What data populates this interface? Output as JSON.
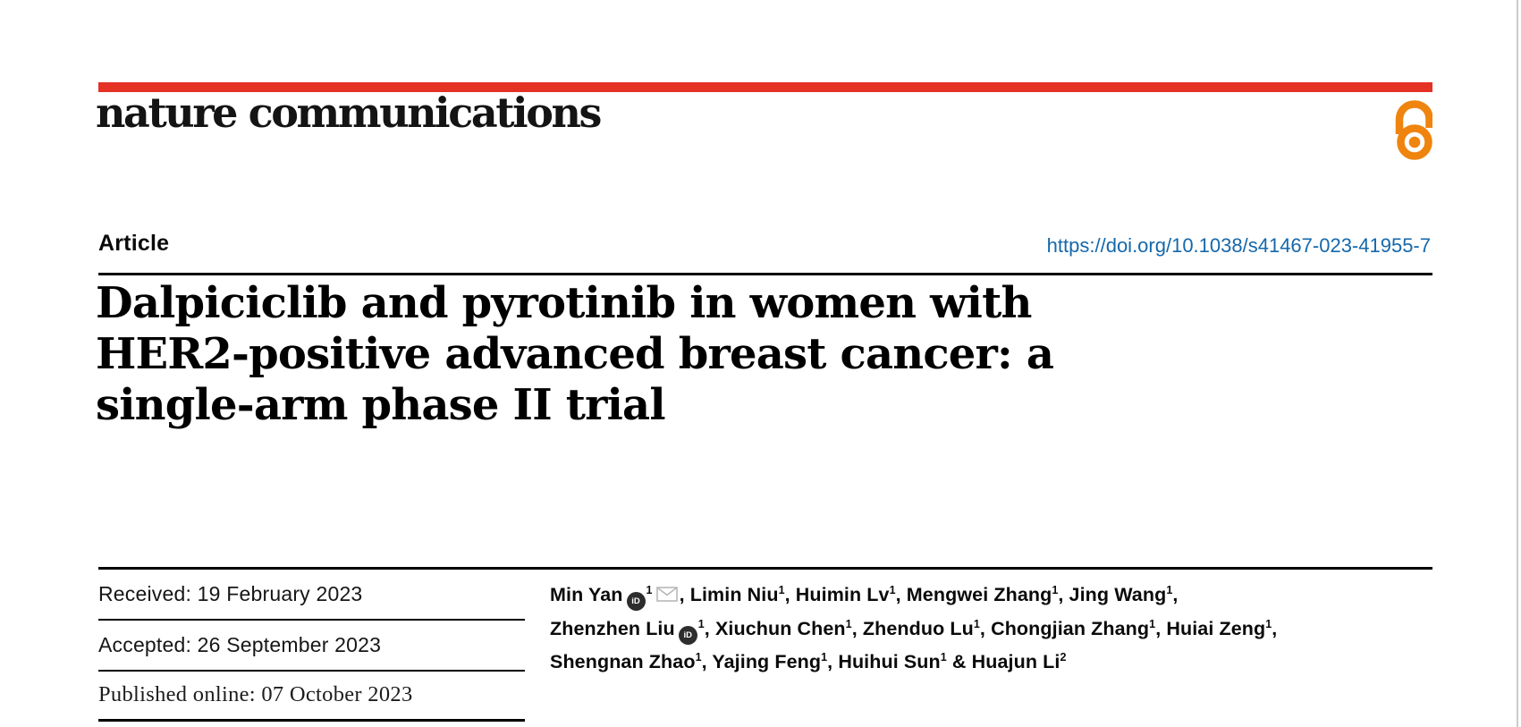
{
  "brand": {
    "journal": "nature communications",
    "bar_color": "#e43225",
    "open_access_color": "#ef840f"
  },
  "header": {
    "article_label": "Article",
    "doi": "https://doi.org/10.1038/s41467-023-41955-7",
    "doi_color": "#1568ab"
  },
  "title": {
    "lines": [
      "Dalpiciclib and pyrotinib in women with",
      "HER2-positive advanced breast cancer: a",
      "single-arm phase II trial"
    ]
  },
  "dates": {
    "received": "Received: 19 February 2023",
    "accepted": "Accepted: 26 September 2023",
    "published": "Published online: 07 October 2023"
  },
  "icons": {
    "orcid_label": "iD",
    "orcid": "orcid-id-badge",
    "envelope": "corresponding-author-email",
    "open_access": "open-access-lock"
  },
  "authors": {
    "lines": [
      [
        {
          "text": "Min Yan"
        },
        {
          "icon": "orcid"
        },
        {
          "sup": "1"
        },
        {
          "icon": "envelope"
        },
        {
          "text": ", Limin Niu"
        },
        {
          "sup": "1"
        },
        {
          "text": ", Huimin Lv"
        },
        {
          "sup": "1"
        },
        {
          "text": ", Mengwei Zhang"
        },
        {
          "sup": "1"
        },
        {
          "text": ", Jing Wang"
        },
        {
          "sup": "1"
        },
        {
          "text": ","
        }
      ],
      [
        {
          "text": "Zhenzhen Liu"
        },
        {
          "icon": "orcid"
        },
        {
          "sup": "1"
        },
        {
          "text": ", Xiuchun Chen"
        },
        {
          "sup": "1"
        },
        {
          "text": ", Zhenduo Lu"
        },
        {
          "sup": "1"
        },
        {
          "text": ", Chongjian Zhang"
        },
        {
          "sup": "1"
        },
        {
          "text": ", Huiai Zeng"
        },
        {
          "sup": "1"
        },
        {
          "text": ","
        }
      ],
      [
        {
          "text": "Shengnan Zhao"
        },
        {
          "sup": "1"
        },
        {
          "text": ", Yajing Feng"
        },
        {
          "sup": "1"
        },
        {
          "text": ", Huihui Sun"
        },
        {
          "sup": "1"
        },
        {
          "text": " & Huajun Li"
        },
        {
          "sup": "2"
        }
      ]
    ]
  }
}
